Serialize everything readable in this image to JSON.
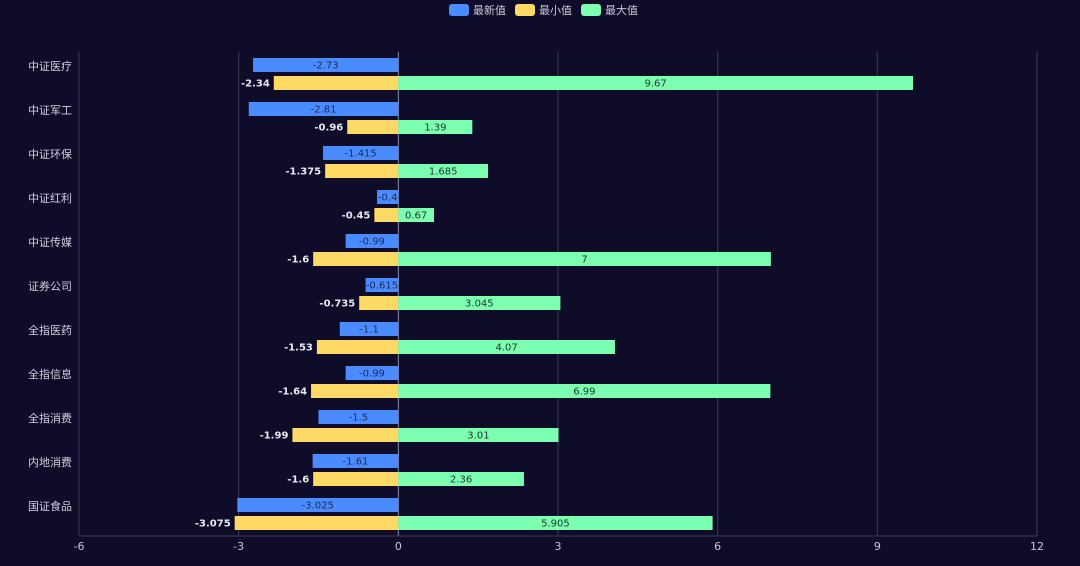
{
  "chart_data": {
    "type": "bar",
    "orientation": "horizontal",
    "categories": [
      "中证医疗",
      "中证军工",
      "中证环保",
      "中证红利",
      "中证传媒",
      "证券公司",
      "全指医药",
      "全指信息",
      "全指消费",
      "内地消费",
      "国证食品"
    ],
    "series": [
      {
        "name": "最新值",
        "color": "#4a8cff",
        "values": [
          -2.73,
          -2.81,
          -1.415,
          -0.4,
          -0.99,
          -0.615,
          -1.1,
          -0.99,
          -1.5,
          -1.61,
          -3.025
        ]
      },
      {
        "name": "最小值",
        "color": "#ffd966",
        "values": [
          -2.34,
          -0.96,
          -1.375,
          -0.45,
          -1.6,
          -0.735,
          -1.53,
          -1.64,
          -1.99,
          -1.6,
          -3.075
        ]
      },
      {
        "name": "最大值",
        "color": "#7dffb2",
        "values": [
          9.67,
          1.39,
          1.685,
          0.67,
          7,
          3.045,
          4.07,
          6.99,
          3.01,
          2.36,
          5.905
        ]
      }
    ],
    "xlim": [
      -6,
      12
    ],
    "x_ticks": [
      "-6",
      "-3",
      "0",
      "3",
      "6",
      "9",
      "12"
    ],
    "grid": true,
    "legend_position": "top-center",
    "title": "",
    "xlabel": "",
    "ylabel": ""
  }
}
